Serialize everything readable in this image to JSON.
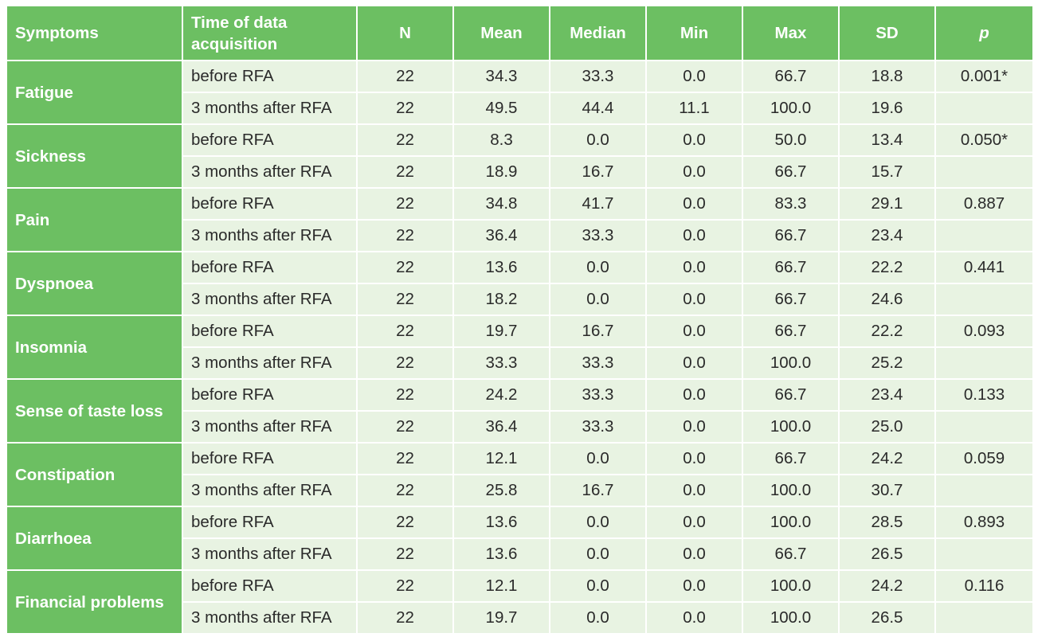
{
  "headers": {
    "symptoms": "Symptoms",
    "time": "Time of data acquisition",
    "n": "N",
    "mean": "Mean",
    "median": "Median",
    "min": "Min",
    "max": "Max",
    "sd": "SD",
    "p": "p"
  },
  "groups": [
    {
      "symptom": "Fatigue",
      "p": "0.001*",
      "rows": [
        {
          "time": "before RFA",
          "n": "22",
          "mean": "34.3",
          "median": "33.3",
          "min": "0.0",
          "max": "66.7",
          "sd": "18.8"
        },
        {
          "time": "3 months after RFA",
          "n": "22",
          "mean": "49.5",
          "median": "44.4",
          "min": "11.1",
          "max": "100.0",
          "sd": "19.6"
        }
      ]
    },
    {
      "symptom": "Sickness",
      "p": "0.050*",
      "rows": [
        {
          "time": "before RFA",
          "n": "22",
          "mean": "8.3",
          "median": "0.0",
          "min": "0.0",
          "max": "50.0",
          "sd": "13.4"
        },
        {
          "time": "3 months after RFA",
          "n": "22",
          "mean": "18.9",
          "median": "16.7",
          "min": "0.0",
          "max": "66.7",
          "sd": "15.7"
        }
      ]
    },
    {
      "symptom": "Pain",
      "p": "0.887",
      "rows": [
        {
          "time": "before RFA",
          "n": "22",
          "mean": "34.8",
          "median": "41.7",
          "min": "0.0",
          "max": "83.3",
          "sd": "29.1"
        },
        {
          "time": "3 months after RFA",
          "n": "22",
          "mean": "36.4",
          "median": "33.3",
          "min": "0.0",
          "max": "66.7",
          "sd": "23.4"
        }
      ]
    },
    {
      "symptom": "Dyspnoea",
      "p": "0.441",
      "rows": [
        {
          "time": "before RFA",
          "n": "22",
          "mean": "13.6",
          "median": "0.0",
          "min": "0.0",
          "max": "66.7",
          "sd": "22.2"
        },
        {
          "time": "3 months after RFA",
          "n": "22",
          "mean": "18.2",
          "median": "0.0",
          "min": "0.0",
          "max": "66.7",
          "sd": "24.6"
        }
      ]
    },
    {
      "symptom": "Insomnia",
      "p": "0.093",
      "rows": [
        {
          "time": "before RFA",
          "n": "22",
          "mean": "19.7",
          "median": "16.7",
          "min": "0.0",
          "max": "66.7",
          "sd": "22.2"
        },
        {
          "time": "3 months after RFA",
          "n": "22",
          "mean": "33.3",
          "median": "33.3",
          "min": "0.0",
          "max": "100.0",
          "sd": "25.2"
        }
      ]
    },
    {
      "symptom": "Sense of taste loss",
      "p": "0.133",
      "rows": [
        {
          "time": "before RFA",
          "n": "22",
          "mean": "24.2",
          "median": "33.3",
          "min": "0.0",
          "max": "66.7",
          "sd": "23.4"
        },
        {
          "time": "3 months after RFA",
          "n": "22",
          "mean": "36.4",
          "median": "33.3",
          "min": "0.0",
          "max": "100.0",
          "sd": "25.0"
        }
      ]
    },
    {
      "symptom": "Constipation",
      "p": "0.059",
      "rows": [
        {
          "time": "before RFA",
          "n": "22",
          "mean": "12.1",
          "median": "0.0",
          "min": "0.0",
          "max": "66.7",
          "sd": "24.2"
        },
        {
          "time": "3 months after RFA",
          "n": "22",
          "mean": "25.8",
          "median": "16.7",
          "min": "0.0",
          "max": "100.0",
          "sd": "30.7"
        }
      ]
    },
    {
      "symptom": "Diarrhoea",
      "p": "0.893",
      "rows": [
        {
          "time": "before RFA",
          "n": "22",
          "mean": "13.6",
          "median": "0.0",
          "min": "0.0",
          "max": "100.0",
          "sd": "28.5"
        },
        {
          "time": "3 months after RFA",
          "n": "22",
          "mean": "13.6",
          "median": "0.0",
          "min": "0.0",
          "max": "66.7",
          "sd": "26.5"
        }
      ]
    },
    {
      "symptom": "Financial problems",
      "p": "0.116",
      "rows": [
        {
          "time": "before RFA",
          "n": "22",
          "mean": "12.1",
          "median": "0.0",
          "min": "0.0",
          "max": "100.0",
          "sd": "24.2"
        },
        {
          "time": "3 months after RFA",
          "n": "22",
          "mean": "19.7",
          "median": "0.0",
          "min": "0.0",
          "max": "100.0",
          "sd": "26.5"
        }
      ]
    }
  ]
}
